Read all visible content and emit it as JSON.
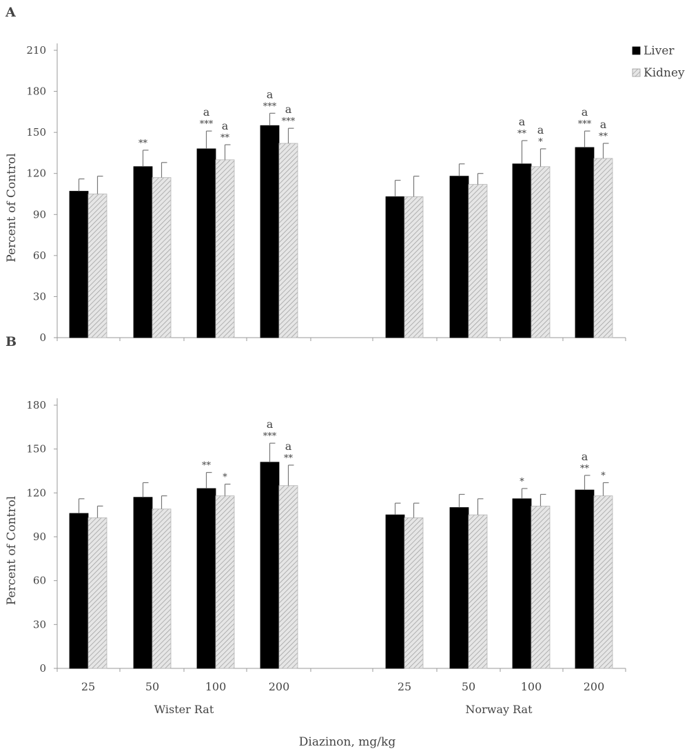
{
  "figure": {
    "xlabel": "Diazinon, mg/kg",
    "group_labels": [
      "Wister Rat",
      "Norway Rat"
    ],
    "legend": [
      {
        "name": "Liver",
        "color": "#000000"
      },
      {
        "name": "Kidney",
        "color": "#d9d9d9",
        "pattern": "diagonal-hatch"
      }
    ],
    "colors": {
      "liver": "#000000",
      "kidney": "#d9d9d9",
      "axis": "#9a9a9a",
      "text": "#444444"
    }
  },
  "chart_data": [
    {
      "panel_label": "A",
      "type": "bar",
      "ylabel": "Percent of Control",
      "ylim": [
        0,
        210
      ],
      "yticks": [
        0,
        30,
        60,
        90,
        120,
        150,
        180,
        210
      ],
      "grid": false,
      "legend_placement": "top-right",
      "groups": [
        {
          "name": "Wister Rat",
          "categories": [
            "25",
            "50",
            "100",
            "200"
          ]
        },
        {
          "name": "Norway Rat",
          "categories": [
            "25",
            "50",
            "100",
            "200"
          ]
        }
      ],
      "series": [
        {
          "name": "Liver",
          "values": [
            107,
            125,
            138,
            155,
            103,
            118,
            127,
            139
          ],
          "errors": [
            9,
            12,
            13,
            9,
            12,
            9,
            17,
            12
          ],
          "annotations": [
            [
              "",
              ""
            ],
            [
              "**",
              ""
            ],
            [
              "***",
              "a"
            ],
            [
              "***",
              "a"
            ],
            [
              "",
              ""
            ],
            [
              "",
              ""
            ],
            [
              "**",
              "a"
            ],
            [
              "***",
              "a"
            ]
          ]
        },
        {
          "name": "Kidney",
          "values": [
            105,
            117,
            130,
            142,
            103,
            112,
            125,
            131
          ],
          "errors": [
            13,
            11,
            11,
            11,
            15,
            8,
            13,
            11
          ],
          "annotations": [
            [
              "",
              ""
            ],
            [
              "",
              ""
            ],
            [
              "**",
              "a"
            ],
            [
              "***",
              "a"
            ],
            [
              "",
              ""
            ],
            [
              "",
              ""
            ],
            [
              "*",
              "a"
            ],
            [
              "**",
              "a"
            ]
          ]
        }
      ]
    },
    {
      "panel_label": "B",
      "type": "bar",
      "ylabel": "Percent of Control",
      "ylim": [
        0,
        180
      ],
      "yticks": [
        0,
        30,
        60,
        90,
        120,
        150,
        180
      ],
      "grid": false,
      "groups": [
        {
          "name": "Wister Rat",
          "categories": [
            "25",
            "50",
            "100",
            "200"
          ]
        },
        {
          "name": "Norway Rat",
          "categories": [
            "25",
            "50",
            "100",
            "200"
          ]
        }
      ],
      "series": [
        {
          "name": "Liver",
          "values": [
            106,
            117,
            123,
            141,
            105,
            110,
            116,
            122
          ],
          "errors": [
            10,
            10,
            11,
            13,
            8,
            9,
            7,
            10
          ],
          "annotations": [
            [
              "",
              ""
            ],
            [
              "",
              ""
            ],
            [
              "**",
              ""
            ],
            [
              "***",
              "a"
            ],
            [
              "",
              ""
            ],
            [
              "",
              ""
            ],
            [
              "*",
              ""
            ],
            [
              "**",
              "a"
            ]
          ]
        },
        {
          "name": "Kidney",
          "values": [
            103,
            109,
            118,
            125,
            103,
            105,
            111,
            118
          ],
          "errors": [
            8,
            9,
            8,
            14,
            10,
            11,
            8,
            9
          ],
          "annotations": [
            [
              "",
              ""
            ],
            [
              "",
              ""
            ],
            [
              "*",
              ""
            ],
            [
              "**",
              "a"
            ],
            [
              "",
              ""
            ],
            [
              "",
              ""
            ],
            [
              "",
              ""
            ],
            [
              "*",
              ""
            ]
          ]
        }
      ]
    }
  ]
}
